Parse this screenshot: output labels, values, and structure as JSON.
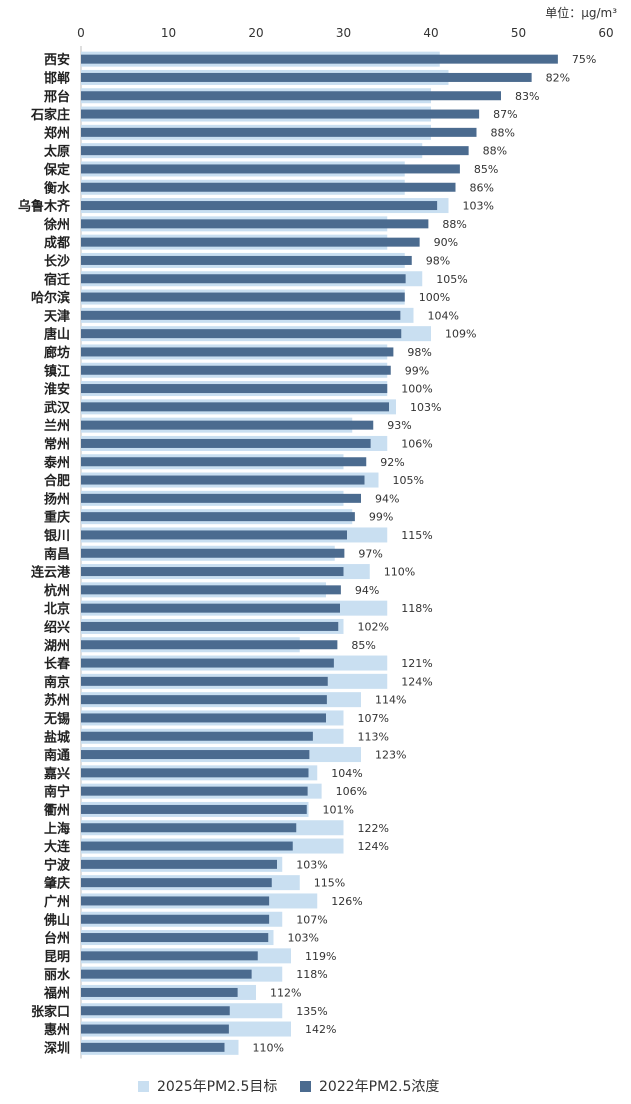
{
  "chart_data": {
    "type": "bar",
    "orientation": "horizontal",
    "unit_label": "单位：μg/m³",
    "xlim": [
      0,
      60
    ],
    "x_ticks": [
      "0",
      "10",
      "20",
      "30",
      "40",
      "50",
      "60"
    ],
    "x_tick_values": [
      0,
      10,
      20,
      30,
      40,
      50,
      60
    ],
    "legend_position": "bottom",
    "series": [
      {
        "name": "2025年PM2.5目标",
        "color": "#c9dff1"
      },
      {
        "name": "2022年PM2.5浓度",
        "color": "#4b6b8f"
      }
    ],
    "categories": [
      "西安",
      "邯郸",
      "邢台",
      "石家庄",
      "郑州",
      "太原",
      "保定",
      "衡水",
      "乌鲁木齐",
      "徐州",
      "成都",
      "长沙",
      "宿迁",
      "哈尔滨",
      "天津",
      "唐山",
      "廊坊",
      "镇江",
      "淮安",
      "武汉",
      "兰州",
      "常州",
      "泰州",
      "合肥",
      "扬州",
      "重庆",
      "银川",
      "南昌",
      "连云港",
      "杭州",
      "北京",
      "绍兴",
      "湖州",
      "长春",
      "南京",
      "苏州",
      "无锡",
      "盐城",
      "南通",
      "嘉兴",
      "南宁",
      "衢州",
      "上海",
      "大连",
      "宁波",
      "肇庆",
      "广州",
      "佛山",
      "台州",
      "昆明",
      "丽水",
      "福州",
      "张家口",
      "惠州",
      "深圳"
    ],
    "target_2025": [
      41,
      42,
      40,
      40,
      40,
      39,
      37,
      37,
      42,
      35,
      35,
      37,
      39,
      37,
      38,
      40,
      35,
      35,
      35,
      36,
      31,
      35,
      30,
      34,
      30,
      31,
      35,
      29,
      33,
      28,
      35,
      30,
      25,
      35,
      35,
      32,
      30,
      30,
      32,
      27,
      27.5,
      26,
      30,
      30,
      23,
      25,
      27,
      23,
      22,
      24,
      23,
      20,
      23,
      24,
      18
    ],
    "actual_2022": [
      54.5,
      51.5,
      48,
      45.5,
      45.2,
      44.3,
      43.3,
      42.8,
      40.7,
      39.7,
      38.7,
      37.8,
      37.1,
      37,
      36.5,
      36.6,
      35.7,
      35.4,
      35,
      35.2,
      33.4,
      33.1,
      32.6,
      32.4,
      32,
      31.3,
      30.4,
      30.1,
      30,
      29.7,
      29.6,
      29.4,
      29.3,
      28.9,
      28.2,
      28.1,
      28,
      26.5,
      26.1,
      26,
      25.9,
      25.8,
      24.6,
      24.2,
      22.4,
      21.8,
      21.5,
      21.5,
      21.4,
      20.2,
      19.5,
      17.9,
      17,
      16.9,
      16.4
    ],
    "ratio_labels": [
      "75%",
      "82%",
      "83%",
      "87%",
      "88%",
      "88%",
      "85%",
      "86%",
      "103%",
      "88%",
      "90%",
      "98%",
      "105%",
      "100%",
      "104%",
      "109%",
      "98%",
      "99%",
      "100%",
      "103%",
      "93%",
      "106%",
      "92%",
      "105%",
      "94%",
      "99%",
      "115%",
      "97%",
      "110%",
      "94%",
      "118%",
      "102%",
      "85%",
      "121%",
      "124%",
      "114%",
      "107%",
      "113%",
      "123%",
      "104%",
      "106%",
      "101%",
      "122%",
      "124%",
      "103%",
      "115%",
      "126%",
      "107%",
      "103%",
      "119%",
      "118%",
      "112%",
      "135%",
      "142%",
      "110%"
    ]
  }
}
